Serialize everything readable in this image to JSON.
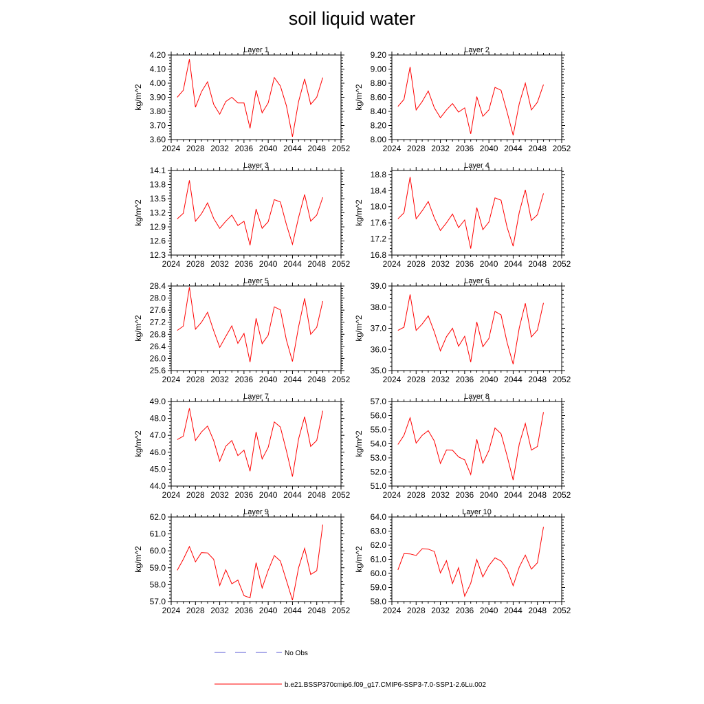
{
  "title": "soil liquid water",
  "legend": {
    "no_obs_label": "No Obs",
    "model_label": "b.e21.BSSP370cmip6.f09_g17.CMIP6-SSP3-7.0-SSP1-2.6Lu.002",
    "model_color": "#ff0000",
    "no_obs_color": "#5a5ad6"
  },
  "chart_data": [
    {
      "type": "line",
      "title": "Layer 1",
      "ylabel": "kg/m^2",
      "xlim": [
        2024,
        2052
      ],
      "xticks": [
        "2024",
        "2028",
        "2032",
        "2036",
        "2040",
        "2044",
        "2048",
        "2052"
      ],
      "ylim": [
        3.6,
        4.2
      ],
      "yticks": [
        "3.60",
        "3.70",
        "3.80",
        "3.90",
        "4.00",
        "4.10",
        "4.20"
      ],
      "x": [
        2025,
        2026,
        2027,
        2028,
        2029,
        2030,
        2031,
        2032,
        2033,
        2034,
        2035,
        2036,
        2037,
        2038,
        2039,
        2040,
        2041,
        2042,
        2043,
        2044,
        2045,
        2046,
        2047,
        2048,
        2049
      ],
      "series": [
        {
          "values": [
            3.9,
            3.95,
            4.17,
            3.83,
            3.94,
            4.01,
            3.85,
            3.78,
            3.87,
            3.9,
            3.86,
            3.86,
            3.68,
            3.95,
            3.79,
            3.86,
            4.04,
            3.98,
            3.84,
            3.62,
            3.87,
            4.03,
            3.85,
            3.9,
            4.04
          ],
          "color": "#ff0000"
        }
      ]
    },
    {
      "type": "line",
      "title": "Layer 2",
      "ylabel": "kg/m^2",
      "xlim": [
        2024,
        2052
      ],
      "xticks": [
        "2024",
        "2028",
        "2032",
        "2036",
        "2040",
        "2044",
        "2048",
        "2052"
      ],
      "ylim": [
        8.0,
        9.2
      ],
      "yticks": [
        "8.00",
        "8.20",
        "8.40",
        "8.60",
        "8.80",
        "9.00",
        "9.20"
      ],
      "x": [
        2025,
        2026,
        2027,
        2028,
        2029,
        2030,
        2031,
        2032,
        2033,
        2034,
        2035,
        2036,
        2037,
        2038,
        2039,
        2040,
        2041,
        2042,
        2043,
        2044,
        2045,
        2046,
        2047,
        2048,
        2049
      ],
      "series": [
        {
          "values": [
            8.47,
            8.57,
            9.03,
            8.42,
            8.54,
            8.69,
            8.45,
            8.31,
            8.42,
            8.51,
            8.39,
            8.45,
            8.08,
            8.61,
            8.33,
            8.42,
            8.74,
            8.7,
            8.39,
            8.06,
            8.51,
            8.8,
            8.42,
            8.53,
            8.78
          ],
          "color": "#ff0000"
        }
      ]
    },
    {
      "type": "line",
      "title": "Layer 3",
      "ylabel": "kg/m^2",
      "xlim": [
        2024,
        2052
      ],
      "xticks": [
        "2024",
        "2028",
        "2032",
        "2036",
        "2040",
        "2044",
        "2048",
        "2052"
      ],
      "ylim": [
        12.3,
        14.1
      ],
      "yticks": [
        "12.3",
        "12.6",
        "12.9",
        "13.2",
        "13.5",
        "13.8",
        "14.1"
      ],
      "x": [
        2025,
        2026,
        2027,
        2028,
        2029,
        2030,
        2031,
        2032,
        2033,
        2034,
        2035,
        2036,
        2037,
        2038,
        2039,
        2040,
        2041,
        2042,
        2043,
        2044,
        2045,
        2046,
        2047,
        2048,
        2049
      ],
      "series": [
        {
          "values": [
            13.07,
            13.19,
            13.89,
            13.02,
            13.18,
            13.41,
            13.08,
            12.87,
            13.02,
            13.15,
            12.93,
            13.02,
            12.51,
            13.28,
            12.87,
            13.01,
            13.48,
            13.43,
            12.95,
            12.53,
            13.1,
            13.59,
            13.02,
            13.15,
            13.53
          ],
          "color": "#ff0000"
        }
      ]
    },
    {
      "type": "line",
      "title": "Layer 4",
      "ylabel": "kg/m^2",
      "xlim": [
        2024,
        2052
      ],
      "xticks": [
        "2024",
        "2028",
        "2032",
        "2036",
        "2040",
        "2044",
        "2048",
        "2052"
      ],
      "ylim": [
        16.8,
        18.9
      ],
      "yticks": [
        "16.8",
        "17.2",
        "17.6",
        "18.0",
        "18.4",
        "18.8"
      ],
      "x": [
        2025,
        2026,
        2027,
        2028,
        2029,
        2030,
        2031,
        2032,
        2033,
        2034,
        2035,
        2036,
        2037,
        2038,
        2039,
        2040,
        2041,
        2042,
        2043,
        2044,
        2045,
        2046,
        2047,
        2048,
        2049
      ],
      "series": [
        {
          "values": [
            17.7,
            17.85,
            18.74,
            17.7,
            17.9,
            18.13,
            17.72,
            17.41,
            17.6,
            17.82,
            17.48,
            17.67,
            16.96,
            17.98,
            17.43,
            17.62,
            18.22,
            18.16,
            17.49,
            17.02,
            17.86,
            18.42,
            17.66,
            17.8,
            18.33
          ],
          "color": "#ff0000"
        }
      ]
    },
    {
      "type": "line",
      "title": "Layer 5",
      "ylabel": "kg/m^2",
      "xlim": [
        2024,
        2052
      ],
      "xticks": [
        "2024",
        "2028",
        "2032",
        "2036",
        "2040",
        "2044",
        "2048",
        "2052"
      ],
      "ylim": [
        25.6,
        28.4
      ],
      "yticks": [
        "25.6",
        "26.0",
        "26.4",
        "26.8",
        "27.2",
        "27.6",
        "28.0",
        "28.4"
      ],
      "x": [
        2025,
        2026,
        2027,
        2028,
        2029,
        2030,
        2031,
        2032,
        2033,
        2034,
        2035,
        2036,
        2037,
        2038,
        2039,
        2040,
        2041,
        2042,
        2043,
        2044,
        2045,
        2046,
        2047,
        2048,
        2049
      ],
      "series": [
        {
          "values": [
            26.93,
            27.07,
            28.36,
            26.97,
            27.2,
            27.53,
            26.92,
            26.37,
            26.73,
            27.08,
            26.5,
            26.83,
            25.88,
            27.33,
            26.49,
            26.77,
            27.71,
            27.61,
            26.61,
            25.9,
            27.05,
            27.99,
            26.8,
            27.03,
            27.9
          ],
          "color": "#ff0000"
        }
      ]
    },
    {
      "type": "line",
      "title": "Layer 6",
      "ylabel": "kg/m^2",
      "xlim": [
        2024,
        2052
      ],
      "xticks": [
        "2024",
        "2028",
        "2032",
        "2036",
        "2040",
        "2044",
        "2048",
        "2052"
      ],
      "ylim": [
        35.0,
        39.0
      ],
      "yticks": [
        "35.0",
        "36.0",
        "37.0",
        "38.0",
        "39.0"
      ],
      "x": [
        2025,
        2026,
        2027,
        2028,
        2029,
        2030,
        2031,
        2032,
        2033,
        2034,
        2035,
        2036,
        2037,
        2038,
        2039,
        2040,
        2041,
        2042,
        2043,
        2044,
        2045,
        2046,
        2047,
        2048,
        2049
      ],
      "series": [
        {
          "values": [
            36.9,
            37.05,
            38.6,
            36.9,
            37.2,
            37.59,
            36.82,
            35.93,
            36.6,
            37.0,
            36.15,
            36.62,
            35.4,
            37.3,
            36.13,
            36.52,
            37.8,
            37.63,
            36.33,
            35.3,
            37.02,
            38.18,
            36.59,
            36.92,
            38.2
          ],
          "color": "#ff0000"
        }
      ]
    },
    {
      "type": "line",
      "title": "Layer 7",
      "ylabel": "kg/m^2",
      "xlim": [
        2024,
        2052
      ],
      "xticks": [
        "2024",
        "2028",
        "2032",
        "2036",
        "2040",
        "2044",
        "2048",
        "2052"
      ],
      "ylim": [
        44.0,
        49.0
      ],
      "yticks": [
        "44.0",
        "45.0",
        "46.0",
        "47.0",
        "48.0",
        "49.0"
      ],
      "x": [
        2025,
        2026,
        2027,
        2028,
        2029,
        2030,
        2031,
        2032,
        2033,
        2034,
        2035,
        2036,
        2037,
        2038,
        2039,
        2040,
        2041,
        2042,
        2043,
        2044,
        2045,
        2046,
        2047,
        2048,
        2049
      ],
      "series": [
        {
          "values": [
            46.75,
            46.95,
            48.6,
            46.7,
            47.2,
            47.55,
            46.69,
            45.47,
            46.35,
            46.69,
            45.8,
            46.12,
            44.88,
            47.2,
            45.6,
            46.29,
            47.79,
            47.49,
            46.08,
            44.56,
            46.79,
            48.1,
            46.34,
            46.7,
            48.45
          ],
          "color": "#ff0000"
        }
      ]
    },
    {
      "type": "line",
      "title": "Layer 8",
      "ylabel": "kg/m^2",
      "xlim": [
        2024,
        2052
      ],
      "xticks": [
        "2024",
        "2028",
        "2032",
        "2036",
        "2040",
        "2044",
        "2048",
        "2052"
      ],
      "ylim": [
        51.0,
        57.0
      ],
      "yticks": [
        "51.0",
        "52.0",
        "53.0",
        "54.0",
        "55.0",
        "56.0",
        "57.0"
      ],
      "x": [
        2025,
        2026,
        2027,
        2028,
        2029,
        2030,
        2031,
        2032,
        2033,
        2034,
        2035,
        2036,
        2037,
        2038,
        2039,
        2040,
        2041,
        2042,
        2043,
        2044,
        2045,
        2046,
        2047,
        2048,
        2049
      ],
      "series": [
        {
          "values": [
            53.95,
            54.6,
            55.85,
            54.05,
            54.6,
            54.93,
            54.19,
            52.6,
            53.56,
            53.54,
            53.07,
            52.86,
            51.82,
            54.31,
            52.62,
            53.52,
            55.12,
            54.71,
            53.14,
            51.43,
            53.98,
            55.44,
            53.55,
            53.81,
            56.25
          ],
          "color": "#ff0000"
        }
      ]
    },
    {
      "type": "line",
      "title": "Layer 9",
      "ylabel": "kg/m^2",
      "xlim": [
        2024,
        2052
      ],
      "xticks": [
        "2024",
        "2028",
        "2032",
        "2036",
        "2040",
        "2044",
        "2048",
        "2052"
      ],
      "ylim": [
        57.0,
        62.0
      ],
      "yticks": [
        "57.0",
        "58.0",
        "59.0",
        "60.0",
        "61.0",
        "62.0"
      ],
      "x": [
        2025,
        2026,
        2027,
        2028,
        2029,
        2030,
        2031,
        2032,
        2033,
        2034,
        2035,
        2036,
        2037,
        2038,
        2039,
        2040,
        2041,
        2042,
        2043,
        2044,
        2045,
        2046,
        2047,
        2048,
        2049
      ],
      "series": [
        {
          "values": [
            58.85,
            59.5,
            60.25,
            59.35,
            59.9,
            59.88,
            59.5,
            57.95,
            58.88,
            58.05,
            58.27,
            57.35,
            57.22,
            59.3,
            57.8,
            58.85,
            59.72,
            59.4,
            58.25,
            57.08,
            59.0,
            60.15,
            58.6,
            58.82,
            61.55
          ],
          "color": "#ff0000"
        }
      ]
    },
    {
      "type": "line",
      "title": "Layer 10",
      "ylabel": "kg/m^2",
      "xlim": [
        2024,
        2052
      ],
      "xticks": [
        "2024",
        "2028",
        "2032",
        "2036",
        "2040",
        "2044",
        "2048",
        "2052"
      ],
      "ylim": [
        58.0,
        64.0
      ],
      "yticks": [
        "58.0",
        "59.0",
        "60.0",
        "61.0",
        "62.0",
        "63.0",
        "64.0"
      ],
      "x": [
        2025,
        2026,
        2027,
        2028,
        2029,
        2030,
        2031,
        2032,
        2033,
        2034,
        2035,
        2036,
        2037,
        2038,
        2039,
        2040,
        2041,
        2042,
        2043,
        2044,
        2045,
        2046,
        2047,
        2048,
        2049
      ],
      "series": [
        {
          "values": [
            60.25,
            61.4,
            61.38,
            61.27,
            61.75,
            61.72,
            61.55,
            60.03,
            60.9,
            59.28,
            60.4,
            58.38,
            59.3,
            60.98,
            59.75,
            60.55,
            61.1,
            60.88,
            60.3,
            59.12,
            60.45,
            61.3,
            60.3,
            60.75,
            63.3
          ],
          "color": "#ff0000"
        }
      ]
    }
  ]
}
